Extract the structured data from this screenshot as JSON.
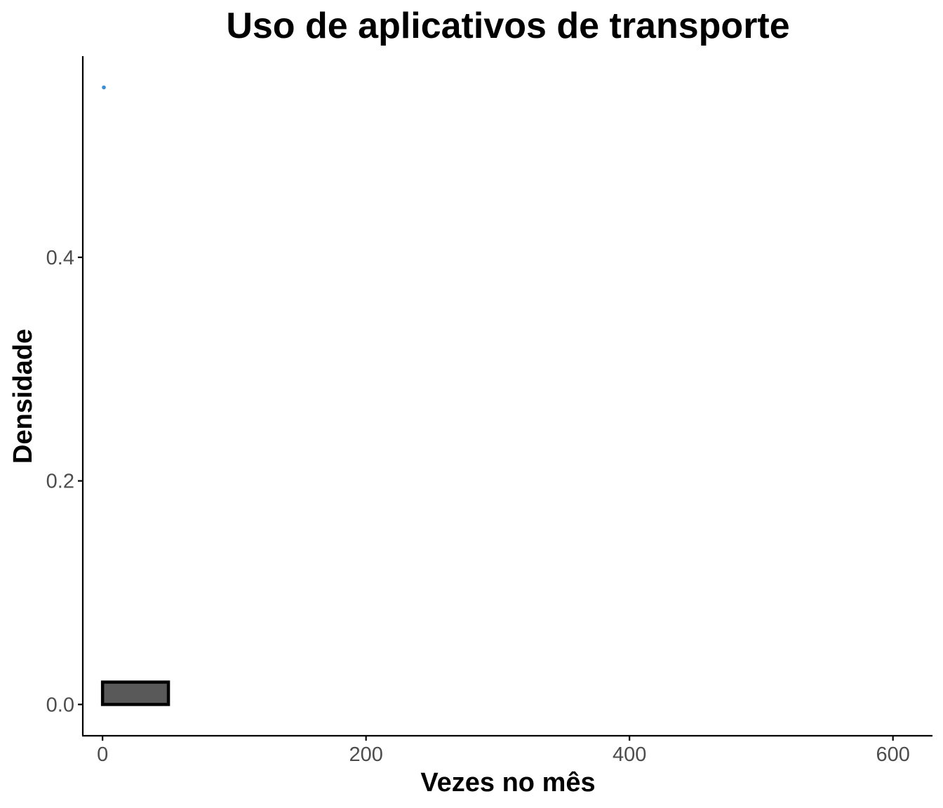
{
  "chart_data": {
    "type": "bar",
    "title": "Uso de aplicativos de transporte",
    "xlabel": "Vezes no mês",
    "ylabel": "Densidade",
    "xlim": [
      -15,
      630
    ],
    "ylim": [
      -0.028,
      0.58
    ],
    "x_ticks": [
      {
        "value": 0,
        "label": "0"
      },
      {
        "value": 200,
        "label": "200"
      },
      {
        "value": 400,
        "label": "400"
      },
      {
        "value": 600,
        "label": "600"
      }
    ],
    "y_ticks": [
      {
        "value": 0.0,
        "label": "0.0"
      },
      {
        "value": 0.2,
        "label": "0.2"
      },
      {
        "value": 0.4,
        "label": "0.4"
      }
    ],
    "bins": [
      {
        "x0": 0,
        "x1": 50,
        "density": 0.02
      },
      {
        "x0": 50,
        "x1": 100,
        "density": 0
      },
      {
        "x0": 100,
        "x1": 150,
        "density": 0
      },
      {
        "x0": 150,
        "x1": 200,
        "density": 0
      },
      {
        "x0": 200,
        "x1": 250,
        "density": 0
      },
      {
        "x0": 250,
        "x1": 300,
        "density": 0
      },
      {
        "x0": 300,
        "x1": 350,
        "density": 0
      },
      {
        "x0": 350,
        "x1": 400,
        "density": 0
      },
      {
        "x0": 400,
        "x1": 450,
        "density": 0
      },
      {
        "x0": 450,
        "x1": 500,
        "density": 0
      },
      {
        "x0": 500,
        "x1": 550,
        "density": 0
      },
      {
        "x0": 550,
        "x1": 600,
        "density": 0
      }
    ],
    "density_peak": {
      "x": 1,
      "y": 0.552
    },
    "grid": false,
    "colors": {
      "bar_fill": "#595959",
      "bar_outline": "#000000",
      "density_line": "#3a8fd6",
      "axis": "#000000",
      "tick_text": "#4d4d4d"
    }
  }
}
